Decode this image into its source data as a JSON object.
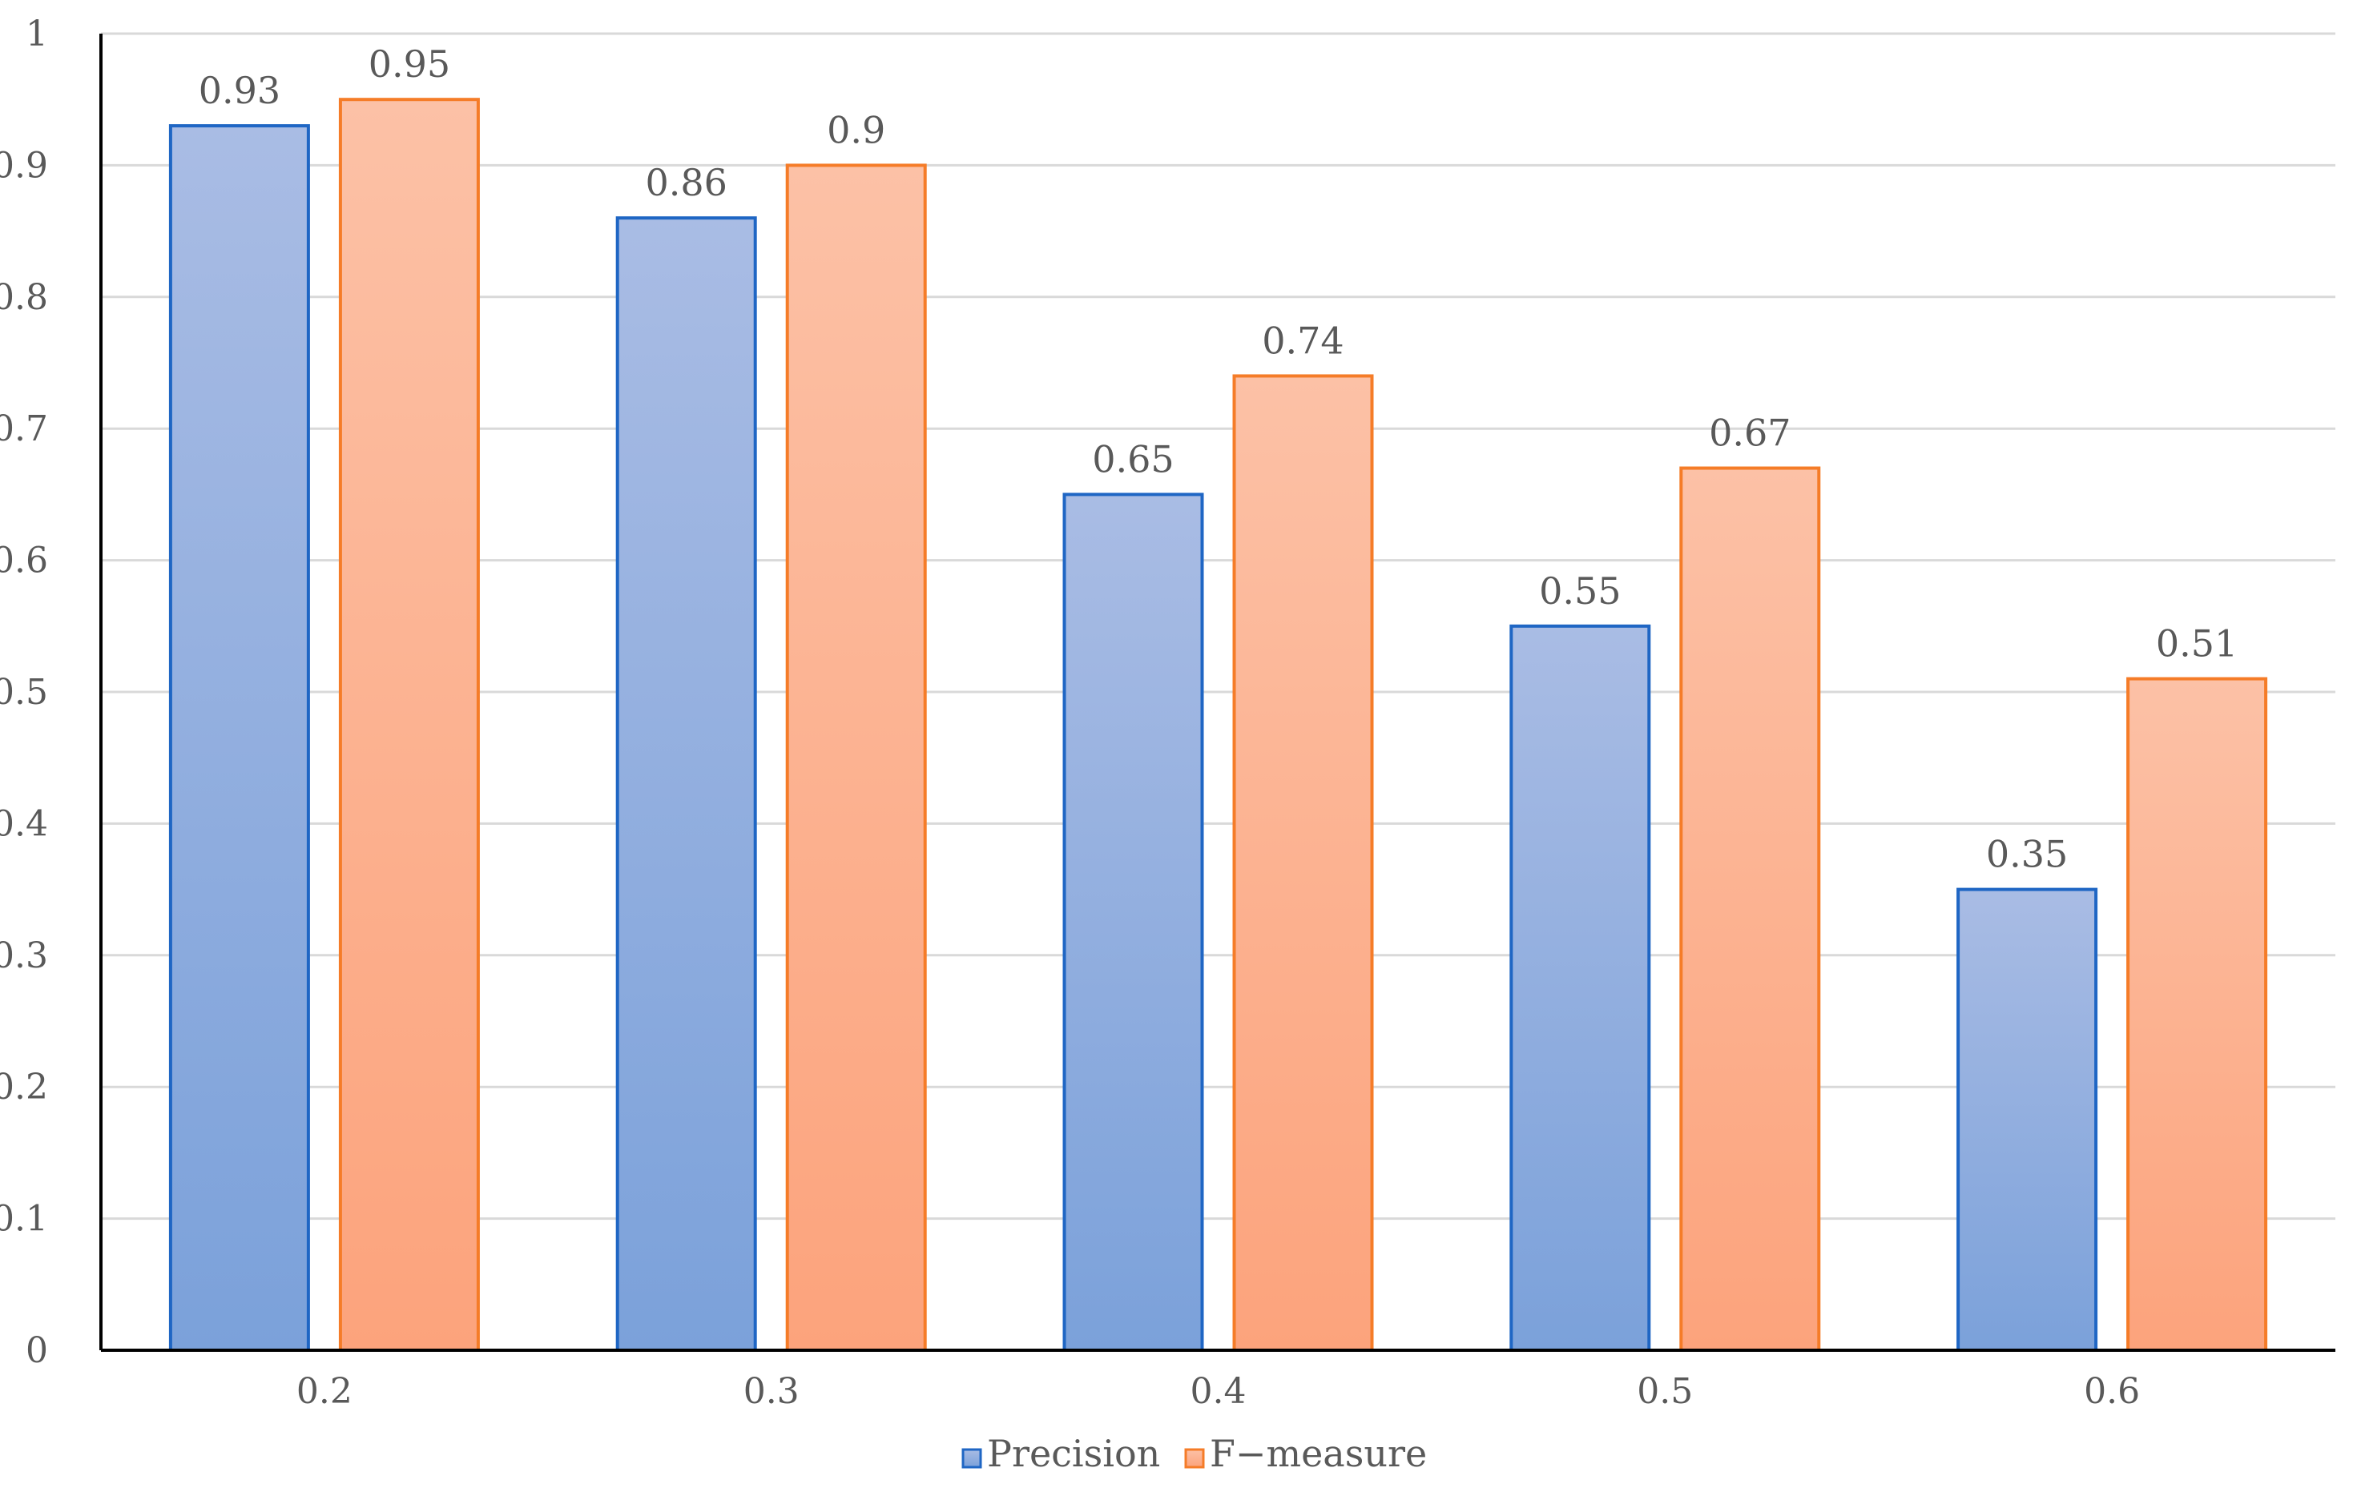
{
  "chart_data": {
    "type": "bar",
    "title": "",
    "xlabel": "",
    "ylabel": "",
    "categories": [
      "0.2",
      "0.3",
      "0.4",
      "0.5",
      "0.6"
    ],
    "series": [
      {
        "name": "Precision",
        "values": [
          0.93,
          0.86,
          0.65,
          0.55,
          0.35
        ],
        "data_labels": [
          "0.93",
          "0.86",
          "0.65",
          "0.55",
          "0.35"
        ]
      },
      {
        "name": "F−measure",
        "values": [
          0.95,
          0.9,
          0.74,
          0.67,
          0.51
        ],
        "data_labels": [
          "0.95",
          "0.9",
          "0.74",
          "0.67",
          "0.51"
        ]
      }
    ],
    "ylim": [
      0,
      1
    ],
    "yticks": [
      "0",
      "0.1",
      "0.2",
      "0.3",
      "0.4",
      "0.5",
      "0.6",
      "0.7",
      "0.8",
      "0.9",
      "1"
    ],
    "grid": true,
    "legend": "bottom",
    "colors": {
      "precision_fill_top": "#a9bce4",
      "precision_fill_bottom": "#7ba1da",
      "precision_border": "#1f66c4",
      "fmeasure_fill_top": "#fcc1a6",
      "fmeasure_fill_bottom": "#fca37c",
      "fmeasure_border": "#f57c28",
      "grid": "#d9d9d9",
      "axis": "#000000",
      "text": "#595959"
    }
  }
}
